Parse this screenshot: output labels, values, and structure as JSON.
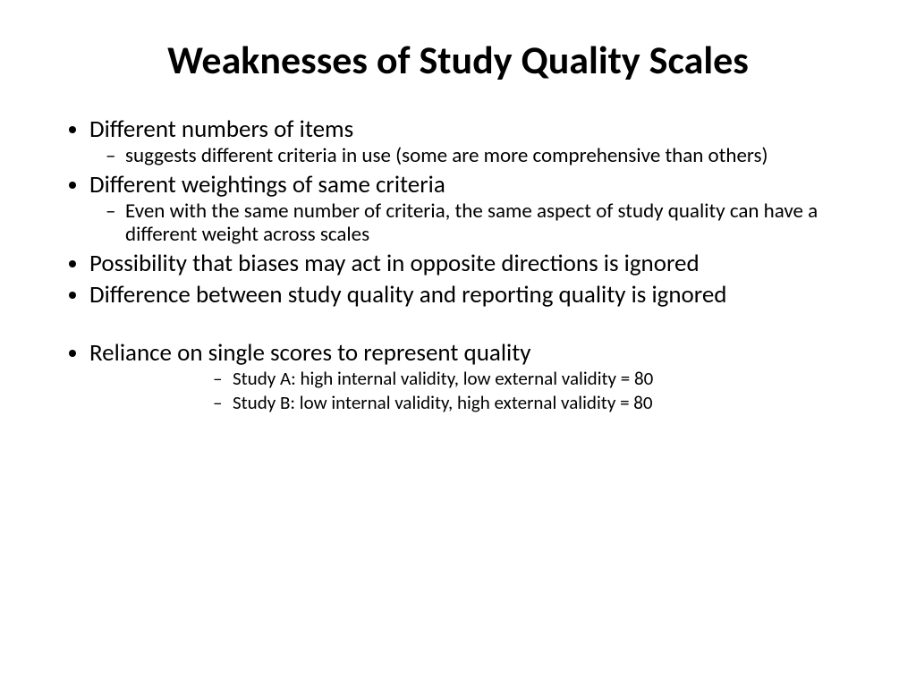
{
  "slide": {
    "title": "Weaknesses of Study Quality Scales",
    "bullets": [
      {
        "text": "Different numbers of items",
        "sub": [
          "suggests different criteria in use (some are more comprehensive than others)"
        ]
      },
      {
        "text": "Different weightings of same criteria",
        "sub": [
          "Even with the same number of criteria, the same aspect of study quality can have a different weight across scales"
        ]
      },
      {
        "text": "Possibility that biases may act in opposite directions is ignored"
      },
      {
        "text": "Difference between study quality and reporting quality is ignored"
      },
      {
        "text": "Reliance on single scores to represent quality",
        "sub_indented": [
          "Study A: high internal validity, low external validity = 80",
          "Study B: low internal validity, high external validity = 80"
        ]
      }
    ],
    "styling": {
      "background_color": "#ffffff",
      "text_color": "#000000",
      "title_fontsize": 44,
      "body_fontsize": 27,
      "sub_fontsize": 23,
      "sub_indented_fontsize": 21,
      "font_family": "Calibri"
    }
  }
}
